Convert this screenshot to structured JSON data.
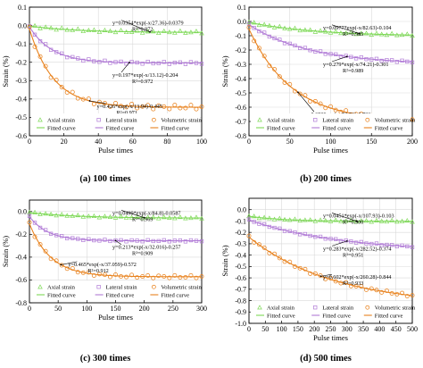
{
  "y_axis_label": "Strain (%)",
  "x_axis_label": "Pulse times",
  "colors": {
    "axial": "#7ed957",
    "lateral": "#b07ad6",
    "volumetric": "#e8821e"
  },
  "chart_data": [
    {
      "id": "a",
      "type": "scatter",
      "caption": "(a) 100 times",
      "xlabel": "Pulse times",
      "ylabel": "Strain (%)",
      "xlim": [
        0,
        100
      ],
      "ylim": [
        -0.6,
        0.1
      ],
      "xticks": [
        0,
        20,
        40,
        60,
        80,
        100
      ],
      "yticks": [
        0.1,
        0.0,
        -0.1,
        -0.2,
        -0.3,
        -0.4,
        -0.5,
        -0.6
      ],
      "ytick_labels": [
        "0.1",
        "0.0",
        "-0.1",
        "-0.2",
        "-0.3",
        "-0.4",
        "-0.5",
        "-0.6"
      ],
      "grid": true,
      "legend_entries": [
        "Axial strain",
        "Lateral strain",
        "Volumetric strain",
        "Fitted curve",
        "Fitted curve",
        "Fitted curve"
      ],
      "series": [
        {
          "name": "Axial strain",
          "kind": "points",
          "color": "#7ed957",
          "A": 0.0354,
          "t": 27.36,
          "c": -0.0379
        },
        {
          "name": "Lateral strain",
          "kind": "points",
          "color": "#b07ad6",
          "A": 0.197,
          "t": 13.12,
          "c": -0.204
        },
        {
          "name": "Volumetric strain",
          "kind": "points",
          "color": "#e8821e",
          "A": 0.426,
          "t": 13.94,
          "c": -0.445
        }
      ],
      "annotations": [
        {
          "series": 0,
          "eq": "y=0.0354*exp(-x/27.36)-0.0379",
          "r2": "R²=0.972",
          "ax": 70,
          "ay": -0.015
        },
        {
          "series": 1,
          "eq": "y=0.197*exp(-x/13.12)-0.204",
          "r2": "R²=0.972",
          "ax": 58,
          "ay": -0.23
        },
        {
          "series": 2,
          "eq": "y=0.426*exp(-x/13.94)-0.445",
          "r2": "R²=0.971",
          "ax": 35,
          "ay": -0.4
        }
      ]
    },
    {
      "id": "b",
      "type": "scatter",
      "caption": "(b) 200 times",
      "xlabel": "Pulse times",
      "ylabel": "Strain (%)",
      "xlim": [
        0,
        200
      ],
      "ylim": [
        -0.8,
        0.1
      ],
      "xticks": [
        0,
        50,
        100,
        150,
        200
      ],
      "yticks": [
        0.1,
        0.0,
        -0.1,
        -0.2,
        -0.3,
        -0.4,
        -0.5,
        -0.6,
        -0.7,
        -0.8
      ],
      "ytick_labels": [
        "0.1",
        "0.0",
        "-0.1",
        "-0.2",
        "-0.3",
        "-0.4",
        "-0.5",
        "-0.6",
        "-0.7",
        "-0.8"
      ],
      "grid": true,
      "legend_entries": [
        "Axial strain",
        "Lateral strain",
        "Volumetric strain",
        "Fitted curve",
        "Fitted curve",
        "Fitted curve"
      ],
      "series": [
        {
          "name": "Axial strain",
          "kind": "points",
          "color": "#7ed957",
          "A": 0.0977,
          "t": 82.63,
          "c": -0.104
        },
        {
          "name": "Lateral strain",
          "kind": "points",
          "color": "#b07ad6",
          "A": 0.279,
          "t": 74.21,
          "c": -0.301
        },
        {
          "name": "Volumetric strain",
          "kind": "points",
          "color": "#e8821e",
          "A": 0.65,
          "t": 52.56,
          "c": -0.703
        }
      ],
      "annotations": [
        {
          "series": 0,
          "eq": "y=0.0977*exp(-x/82.63)-0.104",
          "r2": "R²=0.985",
          "ax": 135,
          "ay": -0.08
        },
        {
          "series": 1,
          "eq": "y=0.279*exp(-x/74.21)-0.301",
          "r2": "R²=0.989",
          "ax": 120,
          "ay": -0.25
        },
        {
          "series": 2,
          "eq": "y=0.650*exp(-x/52.56)-0.703",
          "r2": "R²=0.989",
          "ax": 60,
          "ay": -0.6
        }
      ]
    },
    {
      "id": "c",
      "type": "scatter",
      "caption": "(c) 300 times",
      "xlabel": "Pulse times",
      "ylabel": "Strain (%)",
      "xlim": [
        0,
        300
      ],
      "ylim": [
        -0.8,
        0.1
      ],
      "xticks": [
        0,
        50,
        100,
        150,
        200,
        250,
        300
      ],
      "yticks": [
        0.0,
        -0.2,
        -0.4,
        -0.6,
        -0.8
      ],
      "ytick_labels": [
        "0.0",
        "-0.2",
        "-0.4",
        "-0.6",
        "-0.8"
      ],
      "grid": true,
      "legend_entries": [
        "Axial strain",
        "Lateral strain",
        "Volumetric strain",
        "Fitted curve",
        "Fitted curve",
        "Fitted curve"
      ],
      "series": [
        {
          "name": "Axial strain",
          "kind": "points",
          "color": "#7ed957",
          "A": 0.0499,
          "t": 84.8,
          "c": -0.0587
        },
        {
          "name": "Lateral strain",
          "kind": "points",
          "color": "#b07ad6",
          "A": 0.213,
          "t": 32.016,
          "c": -0.257
        },
        {
          "name": "Volumetric strain",
          "kind": "points",
          "color": "#e8821e",
          "A": 0.465,
          "t": 37.059,
          "c": -0.572
        }
      ],
      "annotations": [
        {
          "series": 0,
          "eq": "y=0.0499*exp(-x/84.8)-0.0587",
          "r2": "R²=0.969",
          "ax": 200,
          "ay": -0.06
        },
        {
          "series": 1,
          "eq": "y=0.213*exp(-x/32.016)-0.257",
          "r2": "R²=0.909",
          "ax": 150,
          "ay": -0.25
        },
        {
          "series": 2,
          "eq": "y=0.465*exp(-x/37.059)-0.572",
          "r2": "R²=0.912",
          "ax": 55,
          "ay": -0.4
        }
      ]
    },
    {
      "id": "d",
      "type": "scatter",
      "caption": "(d) 500 times",
      "xlabel": "Pulse times",
      "ylabel": "Strain (%)",
      "xlim": [
        0,
        500
      ],
      "ylim": [
        -1.0,
        0.1
      ],
      "xticks": [
        0,
        50,
        100,
        150,
        200,
        250,
        300,
        350,
        400,
        450,
        500
      ],
      "yticks": [
        0.0,
        -0.1,
        -0.2,
        -0.3,
        -0.4,
        -0.5,
        -0.6,
        -0.7,
        -0.8,
        -0.9,
        -1.0
      ],
      "ytick_labels": [
        "0.0",
        "-0.1",
        "-0.2",
        "-0.3",
        "-0.4",
        "-0.5",
        "-0.6",
        "-0.7",
        "-0.8",
        "-0.9",
        "-1.0"
      ],
      "grid": true,
      "legend_entries": [
        "Axial strain",
        "Lateral strain",
        "Volumetric strain",
        "Fitted curve",
        "Fitted curve",
        "Fitted curve"
      ],
      "series": [
        {
          "name": "Axial strain",
          "kind": "points",
          "color": "#7ed957",
          "A": 0.0451,
          "t": 107.93,
          "c": -0.103
        },
        {
          "name": "Lateral strain",
          "kind": "points",
          "color": "#b07ad6",
          "A": 0.283,
          "t": 282.52,
          "c": -0.374
        },
        {
          "name": "Volumetric strain",
          "kind": "points",
          "color": "#e8821e",
          "A": 0.602,
          "t": 260.28,
          "c": -0.844
        }
      ],
      "annotations": [
        {
          "series": 0,
          "eq": "y=0.0451*exp(-x/107.93)-0.103",
          "r2": "R²=0.900",
          "ax": 330,
          "ay": -0.1
        },
        {
          "series": 1,
          "eq": "y=0.283*exp(-x/282.52)-0.374",
          "r2": "R²=0.951",
          "ax": 300,
          "ay": -0.28
        },
        {
          "series": 2,
          "eq": "y=0.602*exp(-x/260.28)-0.844",
          "r2": "R²=0.933",
          "ax": 220,
          "ay": -0.53
        }
      ]
    }
  ]
}
